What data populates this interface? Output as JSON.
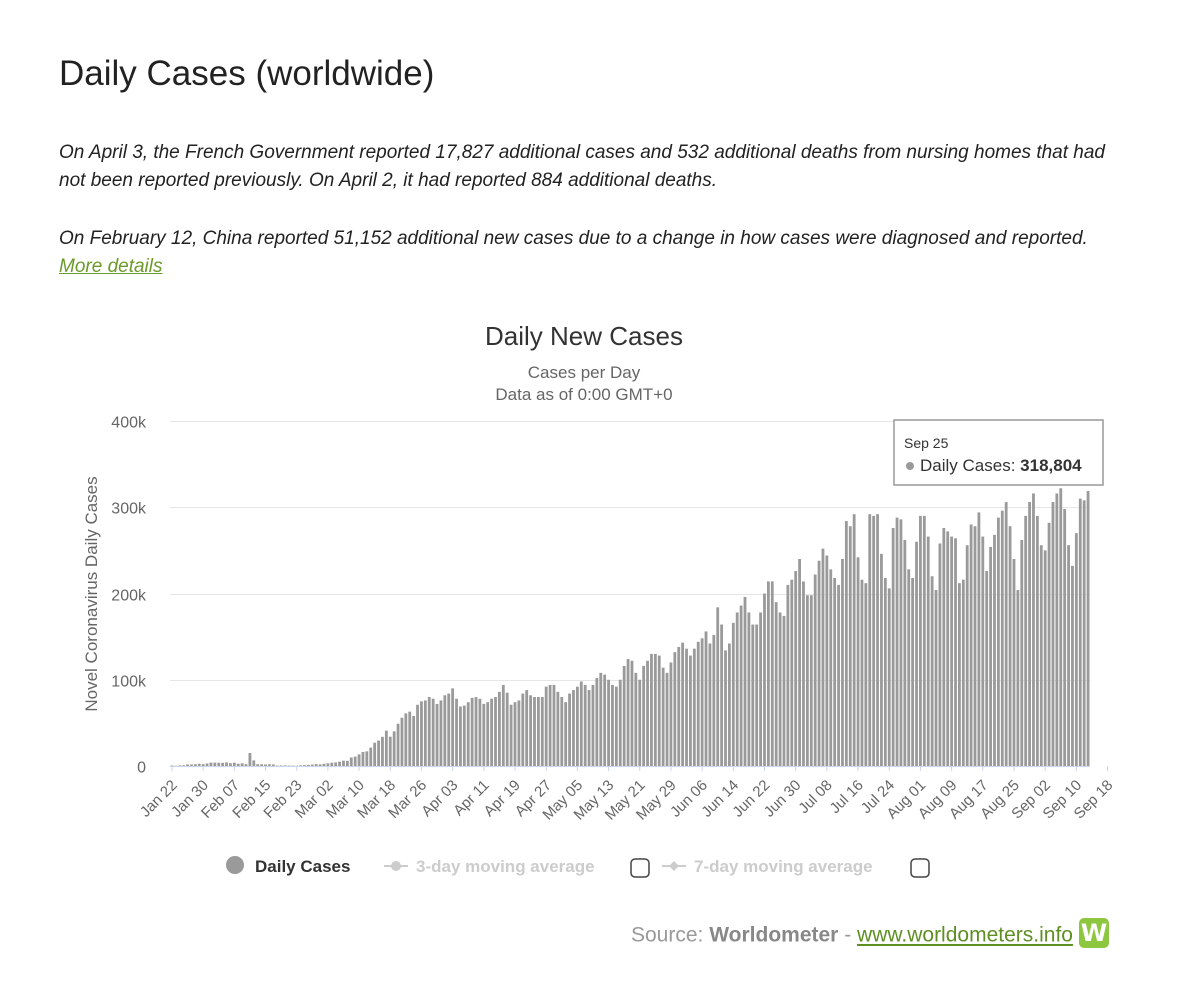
{
  "page": {
    "title": "Daily Cases (worldwide)",
    "note1": "On April 3, the French Government reported 17,827 additional cases and 532 additional deaths from nursing homes that had not been reported previously. On April 2, it had reported 884 additional deaths.",
    "note2_text": "On February 12, China reported 51,152 additional new cases due to a change in how cases were diagnosed and reported.",
    "note2_link": "More details"
  },
  "source": {
    "prefix": "Source:",
    "brand": "Worldometer",
    "separator": "-",
    "link": "www.worldometers.info",
    "logo_letter": "W"
  },
  "colors": {
    "bar": "#9a9a9a",
    "grid": "#e6e6e6",
    "link_green": "#6b9a2a",
    "legend_inactive": "#cccccc",
    "logo_green": "#8dc63f"
  },
  "chart_data": {
    "type": "bar",
    "title": "Daily New Cases",
    "subtitle_lines": [
      "Cases per Day",
      "Data as of 0:00 GMT+0"
    ],
    "ylabel": "Novel Coronavirus Daily Cases",
    "ylim": [
      0,
      400000
    ],
    "ytick_labels": [
      "0",
      "100k",
      "200k",
      "300k",
      "400k"
    ],
    "ytick_values": [
      0,
      100000,
      200000,
      300000,
      400000
    ],
    "grid": true,
    "x_tick_labels": [
      "Jan 22",
      "Jan 30",
      "Feb 07",
      "Feb 15",
      "Feb 23",
      "Mar 02",
      "Mar 10",
      "Mar 18",
      "Mar 26",
      "Apr 03",
      "Apr 11",
      "Apr 19",
      "Apr 27",
      "May 05",
      "May 13",
      "May 21",
      "May 29",
      "Jun 06",
      "Jun 14",
      "Jun 22",
      "Jun 30",
      "Jul 08",
      "Jul 16",
      "Jul 24",
      "Aug 01",
      "Aug 09",
      "Aug 17",
      "Aug 25",
      "Sep 02",
      "Sep 10",
      "Sep 18"
    ],
    "x_start": "Jan 22",
    "x_end": "Sep 25",
    "series": [
      {
        "name": "Daily Cases",
        "values": [
          600,
          300,
          700,
          800,
          1800,
          1800,
          2100,
          2600,
          2100,
          2900,
          3900,
          3900,
          3800,
          3700,
          4100,
          3200,
          3800,
          2600,
          3100,
          2100,
          15100,
          6500,
          2100,
          2000,
          1800,
          2000,
          1800,
          500,
          600,
          600,
          500,
          400,
          300,
          700,
          900,
          1300,
          1700,
          2100,
          1900,
          2600,
          3100,
          3800,
          4100,
          5000,
          6200,
          6000,
          9900,
          10900,
          13500,
          16300,
          17000,
          21300,
          27000,
          29500,
          33800,
          41000,
          34000,
          40200,
          49000,
          56000,
          61000,
          63000,
          58000,
          71000,
          75000,
          76000,
          80000,
          78000,
          72000,
          76000,
          82000,
          84000,
          90000,
          78000,
          69000,
          70000,
          74000,
          79000,
          80000,
          78000,
          72000,
          74000,
          78000,
          80000,
          86000,
          94000,
          85000,
          71000,
          74000,
          76000,
          84000,
          88000,
          82000,
          80000,
          80000,
          80000,
          92000,
          94000,
          94000,
          86000,
          80000,
          74000,
          84000,
          88000,
          92000,
          98000,
          94000,
          88000,
          94000,
          102000,
          108000,
          106000,
          100000,
          94000,
          92000,
          100000,
          116000,
          124000,
          122000,
          108000,
          100000,
          116000,
          122000,
          130000,
          130000,
          128000,
          114000,
          108000,
          120000,
          132000,
          138000,
          143000,
          136000,
          128000,
          136000,
          144000,
          148000,
          156000,
          142000,
          152000,
          184000,
          164000,
          134000,
          142000,
          166000,
          178000,
          186000,
          196000,
          178000,
          164000,
          164000,
          178000,
          200000,
          214000,
          214000,
          190000,
          178000,
          174000,
          210000,
          216000,
          226000,
          240000,
          214000,
          198000,
          198000,
          222000,
          238000,
          252000,
          244000,
          228000,
          218000,
          210000,
          240000,
          284000,
          278000,
          292000,
          242000,
          216000,
          212000,
          292000,
          290000,
          292000,
          246000,
          218000,
          206000,
          276000,
          288000,
          286000,
          262000,
          228000,
          218000,
          260000,
          290000,
          290000,
          266000,
          220000,
          204000,
          258000,
          276000,
          272000,
          266000,
          264000,
          212000,
          216000,
          256000,
          280000,
          278000,
          294000,
          266000,
          226000,
          254000,
          268000,
          288000,
          296000,
          306000,
          278000,
          240000,
          204000,
          262000,
          290000,
          306000,
          316000,
          290000,
          256000,
          250000,
          282000,
          306000,
          316000,
          322000,
          298000,
          256000,
          232000,
          270000,
          310000,
          308000,
          318804
        ]
      }
    ],
    "tooltip": {
      "date": "Sep 25",
      "label": "Daily Cases:",
      "value": "318,804"
    },
    "legend_position": "bottom",
    "legend": [
      {
        "name": "Daily Cases",
        "active": true
      },
      {
        "name": "3-day moving average",
        "active": false
      },
      {
        "name": "7-day moving average",
        "active": false
      }
    ]
  }
}
